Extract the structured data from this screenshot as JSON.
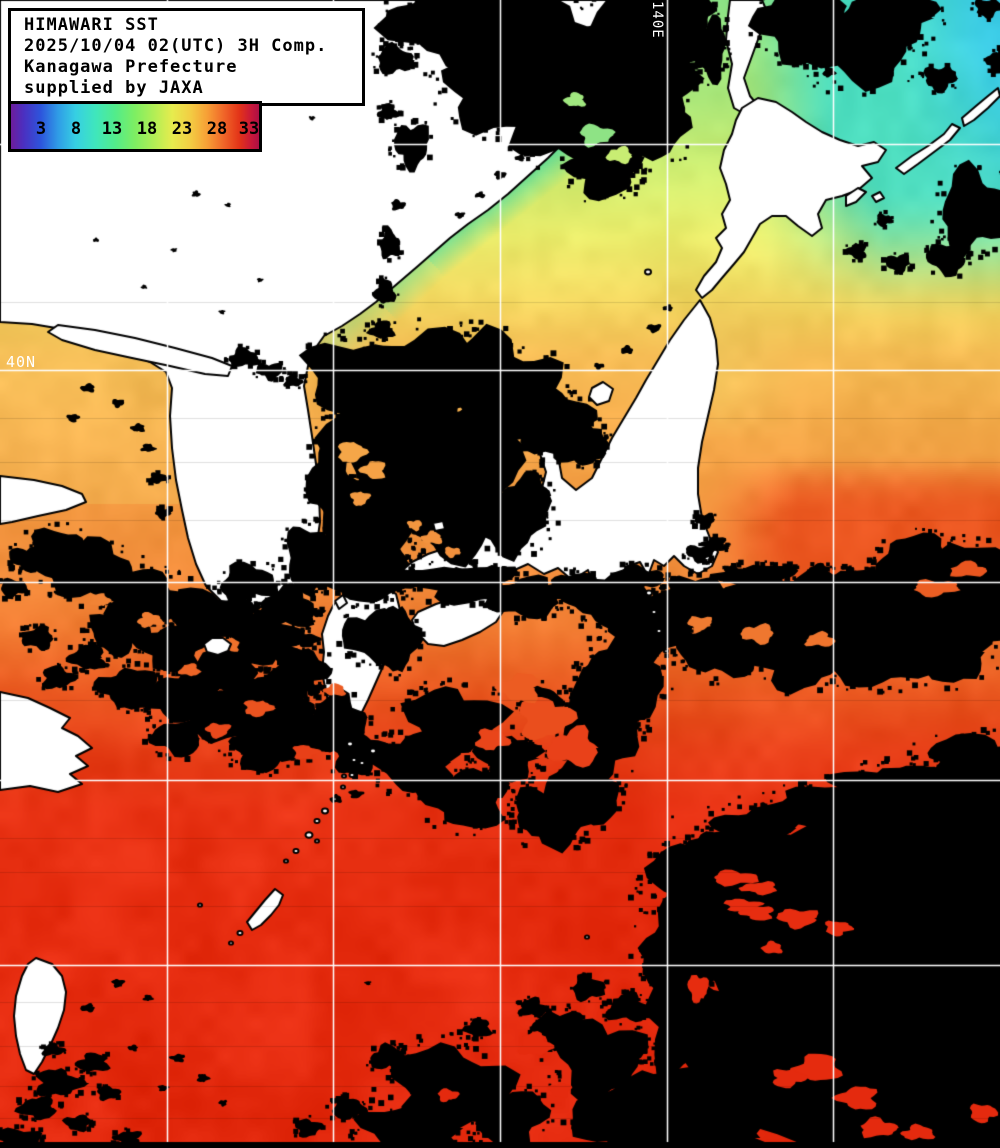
{
  "header": {
    "line1": "HIMAWARI SST",
    "line2": "2025/10/04 02(UTC) 3H Comp.",
    "line3": "Kanagawa Prefecture",
    "line4": "supplied by JAXA"
  },
  "colorbar": {
    "ticks": [
      "3",
      "8",
      "13",
      "18",
      "23",
      "28",
      "33"
    ],
    "gradient_stops": [
      [
        0,
        "#6e1d9c"
      ],
      [
        0.05,
        "#4b2fc0"
      ],
      [
        0.12,
        "#2d55dc"
      ],
      [
        0.19,
        "#2f9ce6"
      ],
      [
        0.26,
        "#36cfe3"
      ],
      [
        0.34,
        "#3fe6bd"
      ],
      [
        0.42,
        "#52ec8b"
      ],
      [
        0.5,
        "#7eee62"
      ],
      [
        0.58,
        "#b4ee55"
      ],
      [
        0.65,
        "#e6ec4e"
      ],
      [
        0.72,
        "#f2cf44"
      ],
      [
        0.79,
        "#f7a036"
      ],
      [
        0.86,
        "#f06428"
      ],
      [
        0.92,
        "#e33418"
      ],
      [
        0.97,
        "#c8173a"
      ],
      [
        1,
        "#ad1045"
      ]
    ]
  },
  "map": {
    "grid": {
      "color": "#ffffff",
      "vertical_lines_x": [
        167,
        333,
        500,
        667,
        833
      ],
      "horizontal_lines_y": [
        144,
        370,
        582,
        780,
        965
      ],
      "lon_label": "140E",
      "lat_label": "40N"
    },
    "palette": {
      "land": "#ffffff",
      "coast_outline": "#000000",
      "cloud": "#000000",
      "frame": "#000000",
      "sea_stops": [
        [
          0,
          "#8de487"
        ],
        [
          95,
          "#abe97c"
        ],
        [
          165,
          "#cdee72"
        ],
        [
          235,
          "#ebee6c"
        ],
        [
          300,
          "#f2d75f"
        ],
        [
          355,
          "#f6bd55"
        ],
        [
          430,
          "#f6ab4b"
        ],
        [
          510,
          "#f49941"
        ],
        [
          570,
          "#f28d3b"
        ],
        [
          630,
          "#f07a30"
        ],
        [
          690,
          "#ec5b22"
        ],
        [
          750,
          "#e94119"
        ],
        [
          810,
          "#e83213"
        ],
        [
          920,
          "#e72d10"
        ],
        [
          1148,
          "#e42a0e"
        ]
      ],
      "northeast_teal": "#43dcc5",
      "northeast_cyan": "#38c8f0",
      "coastal_green": "#4ed89b",
      "kuroshio_red": "#e84617",
      "bohai_yellow": "#f4c35c",
      "tohoku_yellow": "#f7d366"
    }
  }
}
